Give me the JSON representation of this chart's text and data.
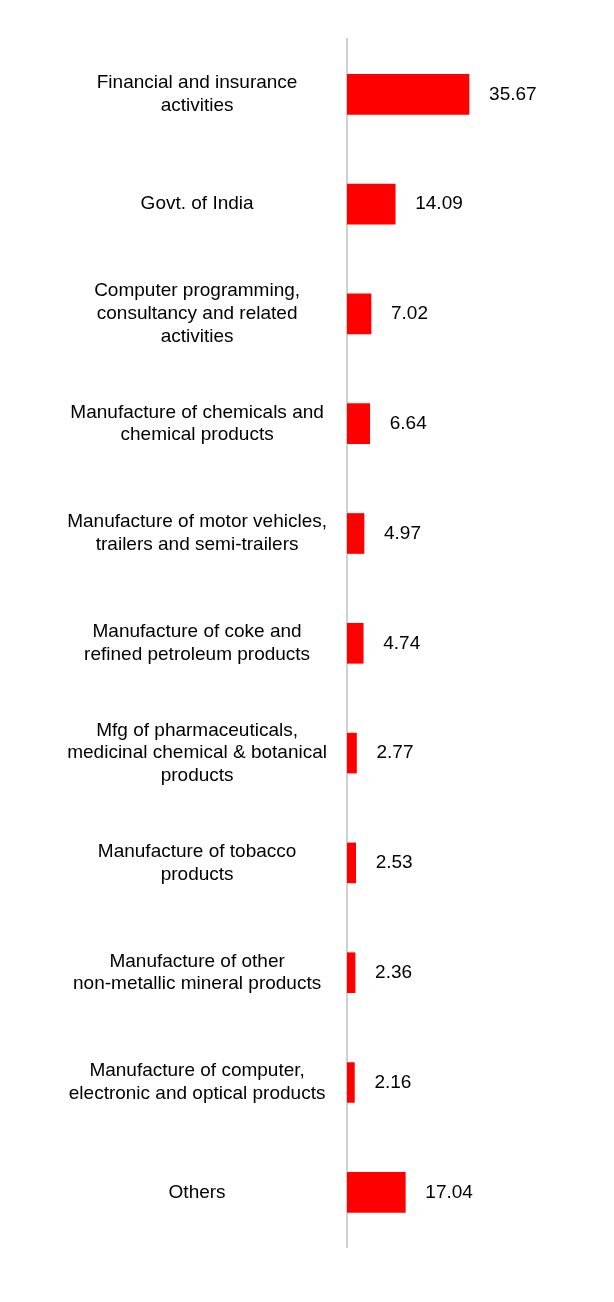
{
  "chart_data": {
    "type": "bar",
    "orientation": "horizontal",
    "data_labels": true,
    "grid": false,
    "legend": false,
    "tick_labels": "y",
    "categories": [
      "Financial and insurance activities",
      "Govt. of India",
      "Computer programming, consultancy and related activities",
      "Manufacture of chemicals and chemical products",
      "Manufacture of motor vehicles, trailers and semi-trailers",
      "Manufacture of coke and refined petroleum products",
      "Mfg of pharmaceuticals, medicinal chemical & botanical products",
      "Manufacture of tobacco products",
      "Manufacture of other non-metallic mineral products",
      "Manufacture of computer, electronic and optical products",
      "Others"
    ],
    "values": [
      35.67,
      14.09,
      7.02,
      6.64,
      4.97,
      4.74,
      2.77,
      2.53,
      2.36,
      2.16,
      17.04
    ],
    "color": "#ff0000"
  }
}
